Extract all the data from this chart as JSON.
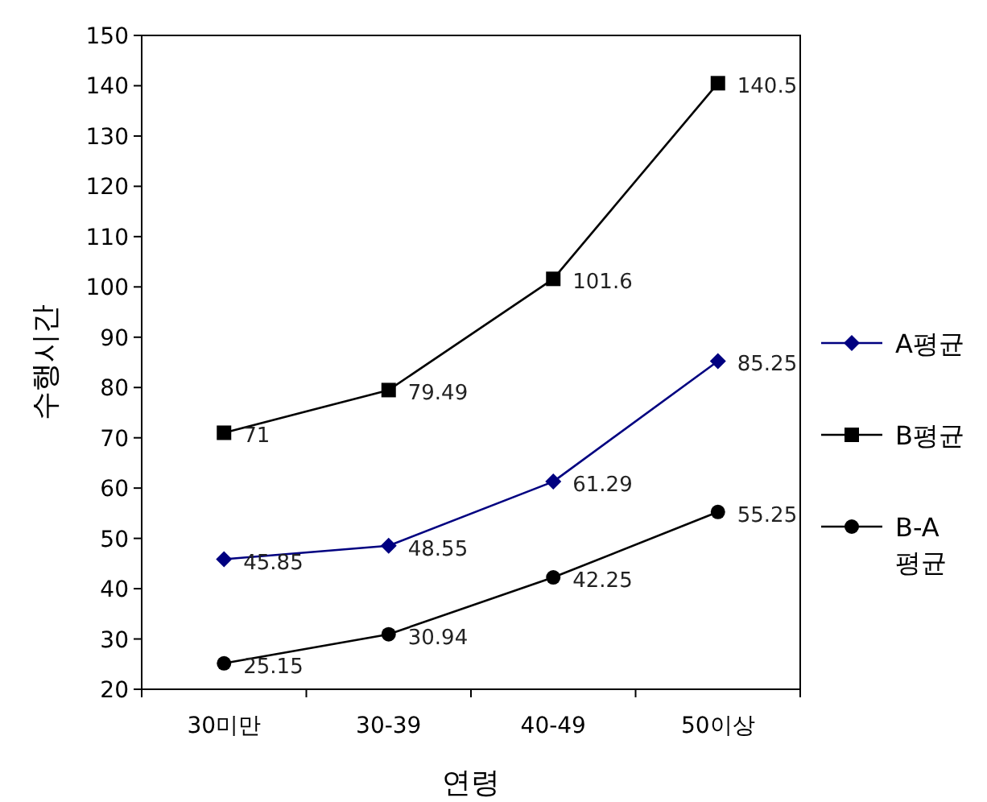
{
  "chart_data": {
    "type": "line",
    "xlabel": "연령",
    "ylabel": "수행시간",
    "categories": [
      "30미만",
      "30-39",
      "40-49",
      "50이상"
    ],
    "series": [
      {
        "name": "A평균",
        "color": "#000080",
        "marker": "diamond",
        "values": [
          45.85,
          48.55,
          61.29,
          85.25
        ]
      },
      {
        "name": "B평균",
        "color": "#000000",
        "marker": "square",
        "values": [
          71,
          79.49,
          101.6,
          140.5
        ]
      },
      {
        "name": "B-A 평균",
        "color": "#000000",
        "marker": "circle",
        "values": [
          25.15,
          30.94,
          42.25,
          55.25
        ]
      }
    ],
    "ylim": [
      20,
      150
    ],
    "yticks": [
      20,
      30,
      40,
      50,
      60,
      70,
      80,
      90,
      100,
      110,
      120,
      130,
      140,
      150
    ],
    "grid": false,
    "legend": "right",
    "data_labels": true,
    "line_style": "solid"
  }
}
